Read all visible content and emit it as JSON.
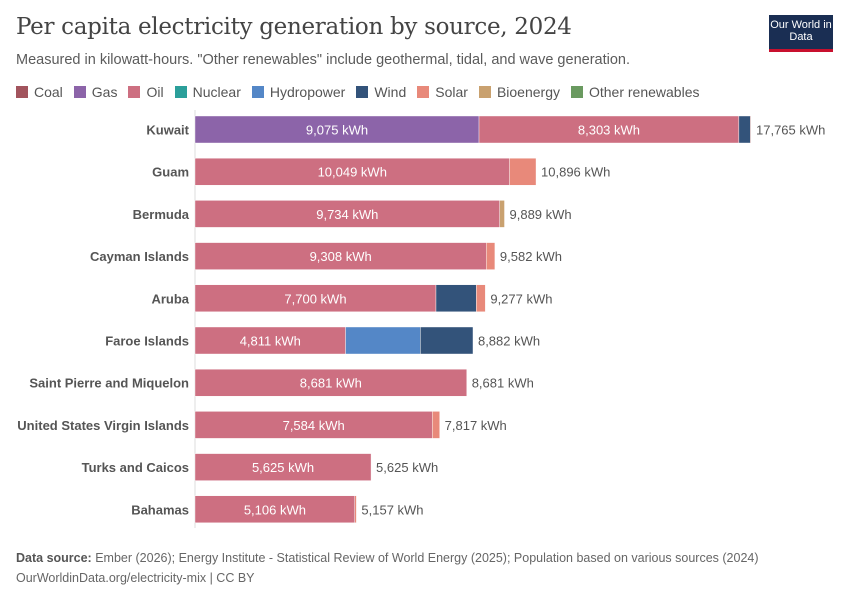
{
  "header": {
    "title": "Per capita electricity generation by source, 2024",
    "subtitle": "Measured in kilowatt-hours. \"Other renewables\" include geothermal, tidal, and wave generation.",
    "logo": "Our World in Data"
  },
  "footer": {
    "source_label": "Data source:",
    "source": "Ember (2026); Energy Institute - Statistical Review of World Energy (2025); Population based on various sources (2024)",
    "url": "OurWorldinData.org/electricity-mix | CC BY"
  },
  "chart_data": {
    "type": "bar",
    "orientation": "horizontal",
    "stacked": true,
    "unit": "kWh",
    "title": "Per capita electricity generation by source, 2024",
    "legend_position": "top",
    "series": [
      {
        "name": "Coal",
        "color": "#a2545d"
      },
      {
        "name": "Gas",
        "color": "#8c64a9"
      },
      {
        "name": "Oil",
        "color": "#cd6f81"
      },
      {
        "name": "Nuclear",
        "color": "#2b9f9a"
      },
      {
        "name": "Hydropower",
        "color": "#5487c7"
      },
      {
        "name": "Wind",
        "color": "#33537a"
      },
      {
        "name": "Solar",
        "color": "#e8897a"
      },
      {
        "name": "Bioenergy",
        "color": "#c9a16f"
      },
      {
        "name": "Other renewables",
        "color": "#6a9a60"
      }
    ],
    "categories": [
      "Kuwait",
      "Guam",
      "Bermuda",
      "Cayman Islands",
      "Aruba",
      "Faroe Islands",
      "Saint Pierre and Miquelon",
      "United States Virgin Islands",
      "Turks and Caicos",
      "Bahamas"
    ],
    "values": [
      {
        "Gas": 9075,
        "Oil": 8303,
        "Wind": 370,
        "Solar": 17,
        "total": 17765
      },
      {
        "Oil": 10049,
        "Solar": 847,
        "total": 10896
      },
      {
        "Oil": 9734,
        "Bioenergy": 155,
        "total": 9889
      },
      {
        "Oil": 9308,
        "Solar": 274,
        "total": 9582
      },
      {
        "Oil": 7700,
        "Wind": 1290,
        "Solar": 287,
        "total": 9277
      },
      {
        "Oil": 4811,
        "Hydropower": 2390,
        "Wind": 1681,
        "total": 8882
      },
      {
        "Oil": 8681,
        "total": 8681
      },
      {
        "Oil": 7584,
        "Solar": 233,
        "total": 7817
      },
      {
        "Oil": 5625,
        "total": 5625
      },
      {
        "Oil": 5106,
        "Solar": 51,
        "total": 5157
      }
    ],
    "labels": {
      "Kuwait": {
        "Gas": "9,075 kWh",
        "Oil": "8,303 kWh",
        "total": "17,765 kWh"
      },
      "Guam": {
        "Oil": "10,049 kWh",
        "total": "10,896 kWh"
      },
      "Bermuda": {
        "Oil": "9,734 kWh",
        "total": "9,889 kWh"
      },
      "Cayman Islands": {
        "Oil": "9,308 kWh",
        "total": "9,582 kWh"
      },
      "Aruba": {
        "Oil": "7,700 kWh",
        "total": "9,277 kWh"
      },
      "Faroe Islands": {
        "Oil": "4,811 kWh",
        "total": "8,882 kWh"
      },
      "Saint Pierre and Miquelon": {
        "Oil": "8,681 kWh",
        "total": "8,681 kWh"
      },
      "United States Virgin Islands": {
        "Oil": "7,584 kWh",
        "total": "7,817 kWh"
      },
      "Turks and Caicos": {
        "Oil": "5,625 kWh",
        "total": "5,625 kWh"
      },
      "Bahamas": {
        "Oil": "5,106 kWh",
        "total": "5,157 kWh"
      }
    }
  }
}
